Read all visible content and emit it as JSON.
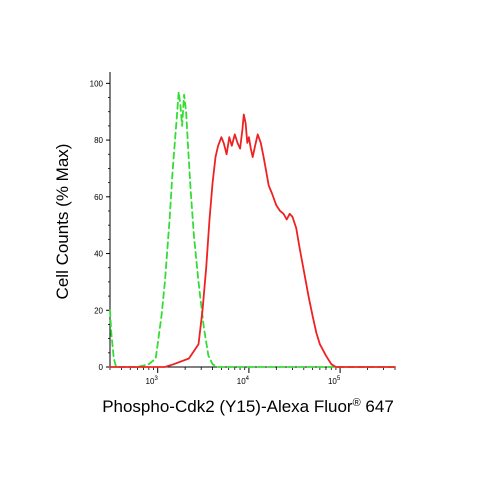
{
  "chart_data": {
    "type": "line",
    "xlabel": "Phospho-Cdk2 (Y15)-Alexa Fluor",
    "xlabel_sup": "®",
    "xlabel_suffix": " 647",
    "ylabel": "Cell Counts (% Max)",
    "xscale": "log",
    "xlim": [
      300,
      400000
    ],
    "ylim": [
      0,
      100
    ],
    "y_ticks": [
      0,
      20,
      40,
      60,
      80,
      100
    ],
    "x_ticks": [
      {
        "value": 1000,
        "base": "10",
        "exp": "3"
      },
      {
        "value": 10000,
        "base": "10",
        "exp": "4"
      },
      {
        "value": 100000,
        "base": "10",
        "exp": "5"
      }
    ],
    "grid": false,
    "legend": "none",
    "series": [
      {
        "color": "#33dd33",
        "style": "dashed",
        "x": [
          300,
          310,
          330,
          350,
          400,
          500,
          600,
          800,
          950,
          1100,
          1200,
          1350,
          1450,
          1550,
          1620,
          1700,
          1780,
          1850,
          1950,
          2050,
          2150,
          2300,
          2500,
          2800,
          3200,
          3600,
          4000,
          4500,
          5000,
          10000,
          100000,
          400000
        ],
        "y": [
          20,
          12,
          3,
          0,
          0,
          0,
          0,
          1,
          3,
          18,
          30,
          52,
          68,
          80,
          88,
          97,
          92,
          85,
          96,
          90,
          78,
          62,
          46,
          30,
          14,
          4,
          1,
          0,
          0,
          0,
          0,
          0
        ]
      },
      {
        "color": "#ee2222",
        "style": "solid",
        "x": [
          300,
          1200,
          1500,
          2200,
          2800,
          3100,
          3400,
          3700,
          4000,
          4300,
          4600,
          5000,
          5300,
          5700,
          6100,
          6500,
          7000,
          7500,
          8000,
          8500,
          8800,
          9200,
          9600,
          10000,
          10500,
          11000,
          11700,
          12500,
          13500,
          14500,
          15500,
          16500,
          18000,
          20000,
          22000,
          24000,
          26000,
          28000,
          30000,
          33000,
          36000,
          40000,
          45000,
          50000,
          55000,
          60000,
          70000,
          80000,
          90000,
          100000,
          150000,
          400000
        ],
        "y": [
          0,
          0,
          1,
          3,
          8,
          20,
          35,
          52,
          65,
          74,
          78,
          81,
          79,
          75,
          81,
          78,
          82,
          79,
          77,
          84,
          89,
          86,
          79,
          81,
          77,
          74,
          78,
          82,
          79,
          74,
          69,
          64,
          61,
          57,
          55,
          54,
          52,
          54,
          53,
          49,
          42,
          34,
          25,
          18,
          12,
          8,
          4,
          1,
          0,
          0,
          0,
          0
        ]
      }
    ]
  }
}
